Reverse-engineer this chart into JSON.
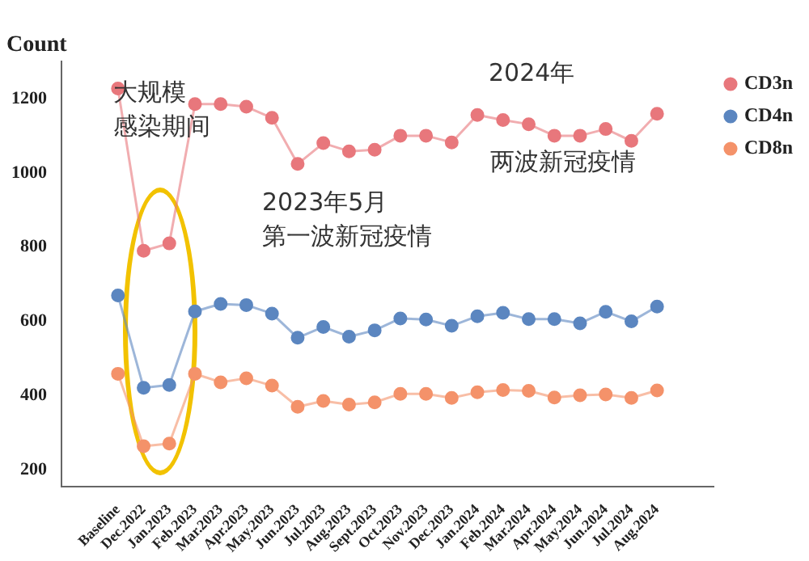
{
  "chart_data": {
    "type": "line",
    "ylabel": "Count",
    "categories": [
      "Baseline",
      "Dec.2022",
      "Jan.2023",
      "Feb.2023",
      "Mar.2023",
      "Apr.2023",
      "May.2023",
      "Jun.2023",
      "Jul.2023",
      "Aug.2023",
      "Sept.2023",
      "Oct.2023",
      "Nov.2023",
      "Dec.2023",
      "Jan.2024",
      "Feb.2024",
      "Mar.2024",
      "Apr.2024",
      "May.2024",
      "Jun.2024",
      "Jul.2024",
      "Aug.2024"
    ],
    "series": [
      {
        "name": "CD3n",
        "color": "#e8777c",
        "values": [
          1227,
          790,
          810,
          1185,
          1185,
          1178,
          1148,
          1024,
          1080,
          1058,
          1062,
          1100,
          1100,
          1082,
          1156,
          1142,
          1131,
          1100,
          1100,
          1118,
          1086,
          1159
        ]
      },
      {
        "name": "CD4n",
        "color": "#5b86c0",
        "values": [
          670,
          421,
          429,
          627,
          647,
          644,
          621,
          556,
          585,
          559,
          576,
          608,
          605,
          588,
          614,
          623,
          606,
          606,
          595,
          626,
          600,
          640
        ]
      },
      {
        "name": "CD8n",
        "color": "#f4926a",
        "values": [
          459,
          264,
          271,
          459,
          436,
          447,
          427,
          370,
          386,
          376,
          382,
          405,
          405,
          394,
          409,
          415,
          413,
          395,
          401,
          403,
          394,
          414
        ]
      }
    ],
    "ylim": [
      155,
      1300
    ],
    "yticks": [
      200,
      400,
      600,
      800,
      1000,
      1200
    ],
    "grid": false,
    "legend": "top right",
    "marker": "circle",
    "line_style": "solid",
    "annotations": [
      "大规模感染期间",
      "2023年5月第一波新冠疫情",
      "2024年",
      "两波新冠疫情"
    ]
  }
}
